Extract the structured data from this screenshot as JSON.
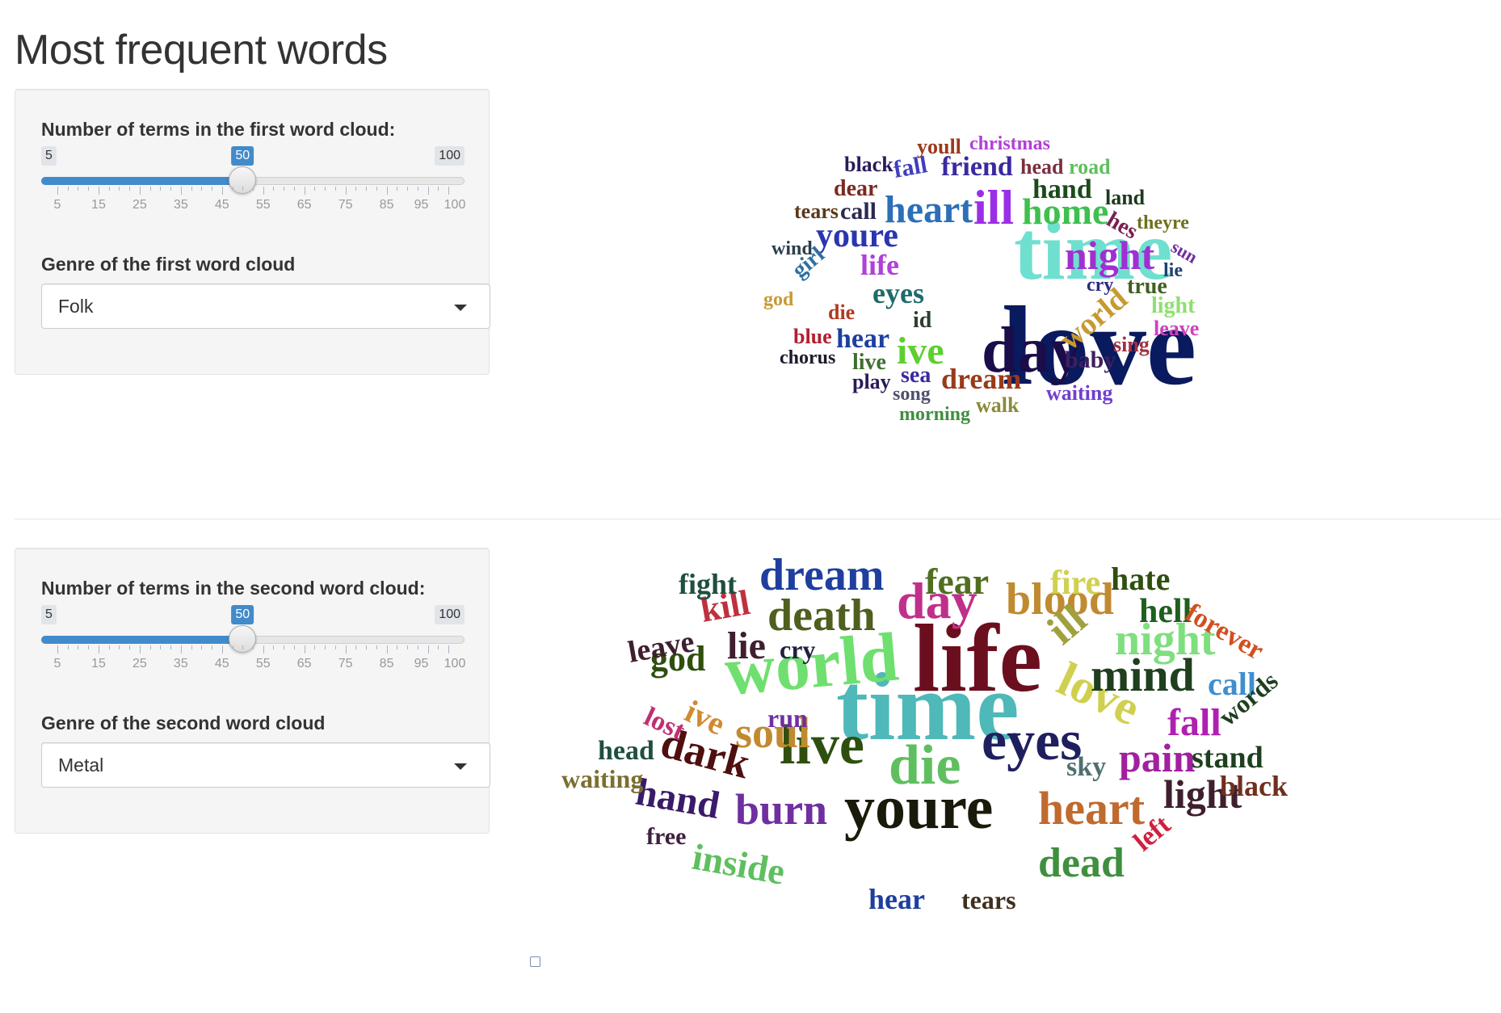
{
  "page": {
    "title": "Most frequent words"
  },
  "panel1": {
    "slider_label": "Number of terms in the first word cloud:",
    "slider": {
      "min": 5,
      "max": 100,
      "value": 50,
      "min_label": "5",
      "max_label": "100",
      "value_label": "50"
    },
    "ticks": [
      "5",
      "15",
      "25",
      "35",
      "45",
      "55",
      "65",
      "75",
      "85",
      "95",
      "100"
    ],
    "genre_label": "Genre of the first word cloud",
    "genre_value": "Folk"
  },
  "panel2": {
    "slider_label": "Number of terms in the second word cloud:",
    "slider": {
      "min": 5,
      "max": 100,
      "value": 50,
      "min_label": "5",
      "max_label": "100",
      "value_label": "50"
    },
    "ticks": [
      "5",
      "15",
      "25",
      "35",
      "45",
      "55",
      "65",
      "75",
      "85",
      "95",
      "100"
    ],
    "genre_label": "Genre of the second word cloud",
    "genre_value": "Metal"
  },
  "colors": {
    "accent": "#428bca",
    "badge": "#e1e4e9",
    "well": "#f5f5f5"
  },
  "cloud1": {
    "words": [
      {
        "text": "love",
        "color": "#0a1a5e"
      },
      {
        "text": "time",
        "color": "#6fdfcf"
      },
      {
        "text": "day",
        "color": "#1a0d4a"
      },
      {
        "text": "ill",
        "color": "#9b2fe8"
      },
      {
        "text": "heart",
        "color": "#2c6fb8"
      },
      {
        "text": "home",
        "color": "#3fbf4f"
      },
      {
        "text": "night",
        "color": "#a02fd0"
      },
      {
        "text": "youre",
        "color": "#2a35b0"
      },
      {
        "text": "ive",
        "color": "#5fcf2f"
      },
      {
        "text": "world",
        "color": "#c69a30"
      },
      {
        "text": "dream",
        "color": "#9a3a1a"
      },
      {
        "text": "friend",
        "color": "#3a2aa0"
      },
      {
        "text": "hand",
        "color": "#1c4a1c"
      },
      {
        "text": "eyes",
        "color": "#1f6b6b"
      },
      {
        "text": "life",
        "color": "#b040d8"
      },
      {
        "text": "hear",
        "color": "#1f3f9f"
      },
      {
        "text": "call",
        "color": "#2a2a50"
      },
      {
        "text": "sea",
        "color": "#3a2aa0"
      },
      {
        "text": "girl",
        "color": "#2f6f9f"
      },
      {
        "text": "fall",
        "color": "#3f3fbf"
      },
      {
        "text": "head",
        "color": "#7a2f3f"
      },
      {
        "text": "road",
        "color": "#5fbf5f"
      },
      {
        "text": "black",
        "color": "#2a1a5a"
      },
      {
        "text": "youll",
        "color": "#9a3a1a"
      },
      {
        "text": "christmas",
        "color": "#b040d8"
      },
      {
        "text": "dear",
        "color": "#7a2a20"
      },
      {
        "text": "land",
        "color": "#1c3a1c"
      },
      {
        "text": "tears",
        "color": "#5a3a1a"
      },
      {
        "text": "hes",
        "color": "#7a2050"
      },
      {
        "text": "theyre",
        "color": "#6f6f1f"
      },
      {
        "text": "sun",
        "color": "#6f2fa0"
      },
      {
        "text": "wind",
        "color": "#2a3f4a"
      },
      {
        "text": "lie",
        "color": "#1f3f6f"
      },
      {
        "text": "cry",
        "color": "#2a2a80"
      },
      {
        "text": "true",
        "color": "#3f5f1f"
      },
      {
        "text": "light",
        "color": "#8fdf6f"
      },
      {
        "text": "god",
        "color": "#c69a30"
      },
      {
        "text": "die",
        "color": "#b03a20"
      },
      {
        "text": "id",
        "color": "#2f3f2f"
      },
      {
        "text": "leave",
        "color": "#d040c0"
      },
      {
        "text": "blue",
        "color": "#b02030"
      },
      {
        "text": "sing",
        "color": "#a03040"
      },
      {
        "text": "chorus",
        "color": "#1a1a2a"
      },
      {
        "text": "live",
        "color": "#3f6f2f"
      },
      {
        "text": "baby",
        "color": "#3f1f5f"
      },
      {
        "text": "play",
        "color": "#2a1a5a"
      },
      {
        "text": "song",
        "color": "#4f4f6f"
      },
      {
        "text": "waiting",
        "color": "#6f3fd0"
      },
      {
        "text": "walk",
        "color": "#8a8a3a"
      },
      {
        "text": "morning",
        "color": "#3f8f3f"
      }
    ]
  },
  "cloud2": {
    "words": [
      {
        "text": "life",
        "color": "#6b0f1f"
      },
      {
        "text": "time",
        "color": "#4fb8b8"
      },
      {
        "text": "world",
        "color": "#6fdf6f"
      },
      {
        "text": "youre",
        "color": "#1a1a0a"
      },
      {
        "text": "eyes",
        "color": "#1f1f5f"
      },
      {
        "text": "die",
        "color": "#5fbf5f"
      },
      {
        "text": "live",
        "color": "#2f4f0f"
      },
      {
        "text": "day",
        "color": "#c0308a"
      },
      {
        "text": "blood",
        "color": "#c08a30"
      },
      {
        "text": "death",
        "color": "#4f5f1f"
      },
      {
        "text": "dream",
        "color": "#1f3f9f"
      },
      {
        "text": "love",
        "color": "#d0d050"
      },
      {
        "text": "night",
        "color": "#7fdf7f"
      },
      {
        "text": "mind",
        "color": "#1f3f1f"
      },
      {
        "text": "soul",
        "color": "#c08a30"
      },
      {
        "text": "dark",
        "color": "#4f0f0f"
      },
      {
        "text": "pain",
        "color": "#a020a0"
      },
      {
        "text": "heart",
        "color": "#c06a2f"
      },
      {
        "text": "light",
        "color": "#3f1f2f"
      },
      {
        "text": "dead",
        "color": "#3f8f3f"
      },
      {
        "text": "burn",
        "color": "#6f2fa0"
      },
      {
        "text": "hand",
        "color": "#3a1a6a"
      },
      {
        "text": "inside",
        "color": "#5fbf5f"
      },
      {
        "text": "fear",
        "color": "#4f6f1f"
      },
      {
        "text": "fire",
        "color": "#d0d050"
      },
      {
        "text": "hate",
        "color": "#2f4f0f"
      },
      {
        "text": "hell",
        "color": "#1f5f1f"
      },
      {
        "text": "forever",
        "color": "#d0501f"
      },
      {
        "text": "ill",
        "color": "#a0a03f"
      },
      {
        "text": "call",
        "color": "#3f8fcf"
      },
      {
        "text": "words",
        "color": "#1f3f1f"
      },
      {
        "text": "fall",
        "color": "#b020b0"
      },
      {
        "text": "stand",
        "color": "#1f3f1f"
      },
      {
        "text": "black",
        "color": "#6f2f1f"
      },
      {
        "text": "sky",
        "color": "#4f6f6f"
      },
      {
        "text": "god",
        "color": "#2f4f0f"
      },
      {
        "text": "lie",
        "color": "#3f1f2f"
      },
      {
        "text": "cry",
        "color": "#1f1f3f"
      },
      {
        "text": "kill",
        "color": "#c0303f"
      },
      {
        "text": "fight",
        "color": "#1f4f3f"
      },
      {
        "text": "leave",
        "color": "#3f1f2f"
      },
      {
        "text": "ive",
        "color": "#d08a30"
      },
      {
        "text": "lost",
        "color": "#c03070"
      },
      {
        "text": "run",
        "color": "#6f2fa0"
      },
      {
        "text": "head",
        "color": "#1f4f3f"
      },
      {
        "text": "waiting",
        "color": "#7a6f2f"
      },
      {
        "text": "free",
        "color": "#3f1f3f"
      },
      {
        "text": "hear",
        "color": "#1f3f9f"
      },
      {
        "text": "tears",
        "color": "#3f2f1f"
      },
      {
        "text": "left",
        "color": "#d02040"
      }
    ]
  }
}
